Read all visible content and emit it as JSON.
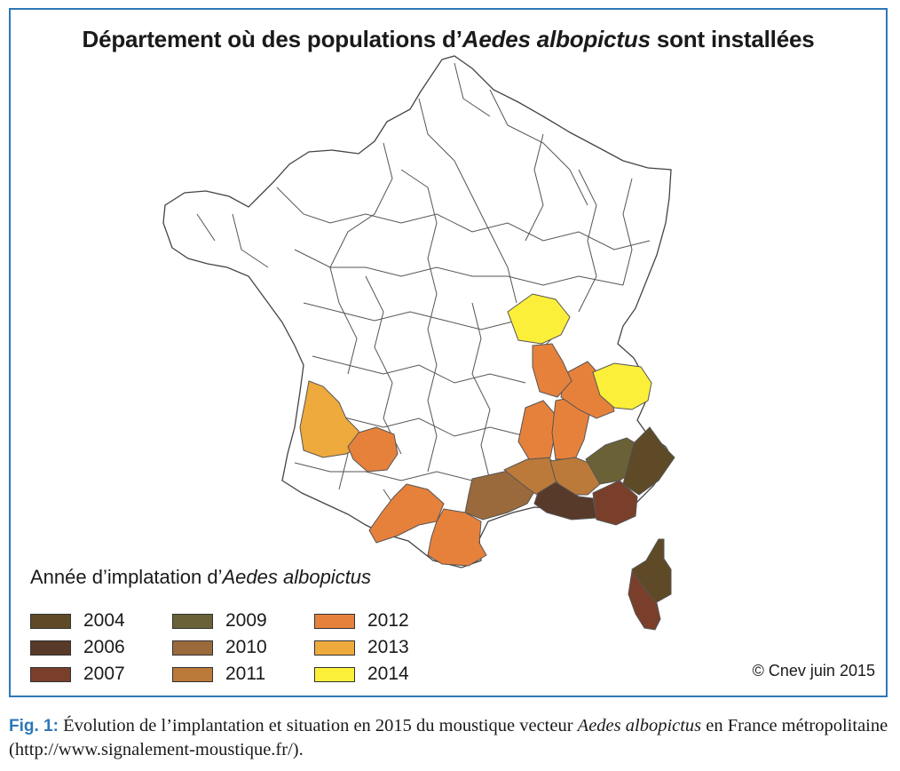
{
  "title": {
    "prefix": "Département où des populations d’",
    "species": "Aedes albopictus",
    "suffix": " sont installées"
  },
  "legend": {
    "title_prefix": "Année d’implatation d’",
    "title_species": "Aedes albopictus",
    "items": [
      {
        "year": "2004",
        "color": "#5e4a26"
      },
      {
        "year": "2006",
        "color": "#583a2a"
      },
      {
        "year": "2007",
        "color": "#7a3f2a"
      },
      {
        "year": "2009",
        "color": "#6a6236"
      },
      {
        "year": "2010",
        "color": "#9a6a3c"
      },
      {
        "year": "2011",
        "color": "#bb7a3a"
      },
      {
        "year": "2012",
        "color": "#e6813c"
      },
      {
        "year": "2013",
        "color": "#eeaa3c"
      },
      {
        "year": "2014",
        "color": "#fcef3a"
      }
    ]
  },
  "map": {
    "outline_color": "#444444",
    "empty_fill": "#ffffff",
    "colonized_regions": [
      {
        "id": "gironde",
        "year": "2013"
      },
      {
        "id": "lot-et-garonne",
        "year": "2012"
      },
      {
        "id": "pyrenees-west",
        "year": "2012"
      },
      {
        "id": "pyrenees-orientales",
        "year": "2012"
      },
      {
        "id": "herault",
        "year": "2010"
      },
      {
        "id": "gard",
        "year": "2011"
      },
      {
        "id": "ardeche",
        "year": "2012"
      },
      {
        "id": "drome",
        "year": "2012"
      },
      {
        "id": "isere",
        "year": "2012"
      },
      {
        "id": "rhone",
        "year": "2012"
      },
      {
        "id": "saone-et-loire",
        "year": "2014"
      },
      {
        "id": "savoie",
        "year": "2014"
      },
      {
        "id": "vaucluse",
        "year": "2011"
      },
      {
        "id": "bouches-du-rhone",
        "year": "2006"
      },
      {
        "id": "var",
        "year": "2007"
      },
      {
        "id": "alpes-de-haute-provence",
        "year": "2009"
      },
      {
        "id": "alpes-maritimes",
        "year": "2004"
      },
      {
        "id": "haute-corse",
        "year": "2004"
      },
      {
        "id": "corse-du-sud",
        "year": "2007"
      }
    ]
  },
  "credit": "© Cnev juin 2015",
  "caption": {
    "fig_label": "Fig. 1:",
    "text_before": " Évolution de l’implantation et situation en 2015 du moustique vecteur ",
    "species": "Aedes albopictus",
    "text_after": " en France métropolitaine (http://www.signalement-moustique.fr/)."
  }
}
